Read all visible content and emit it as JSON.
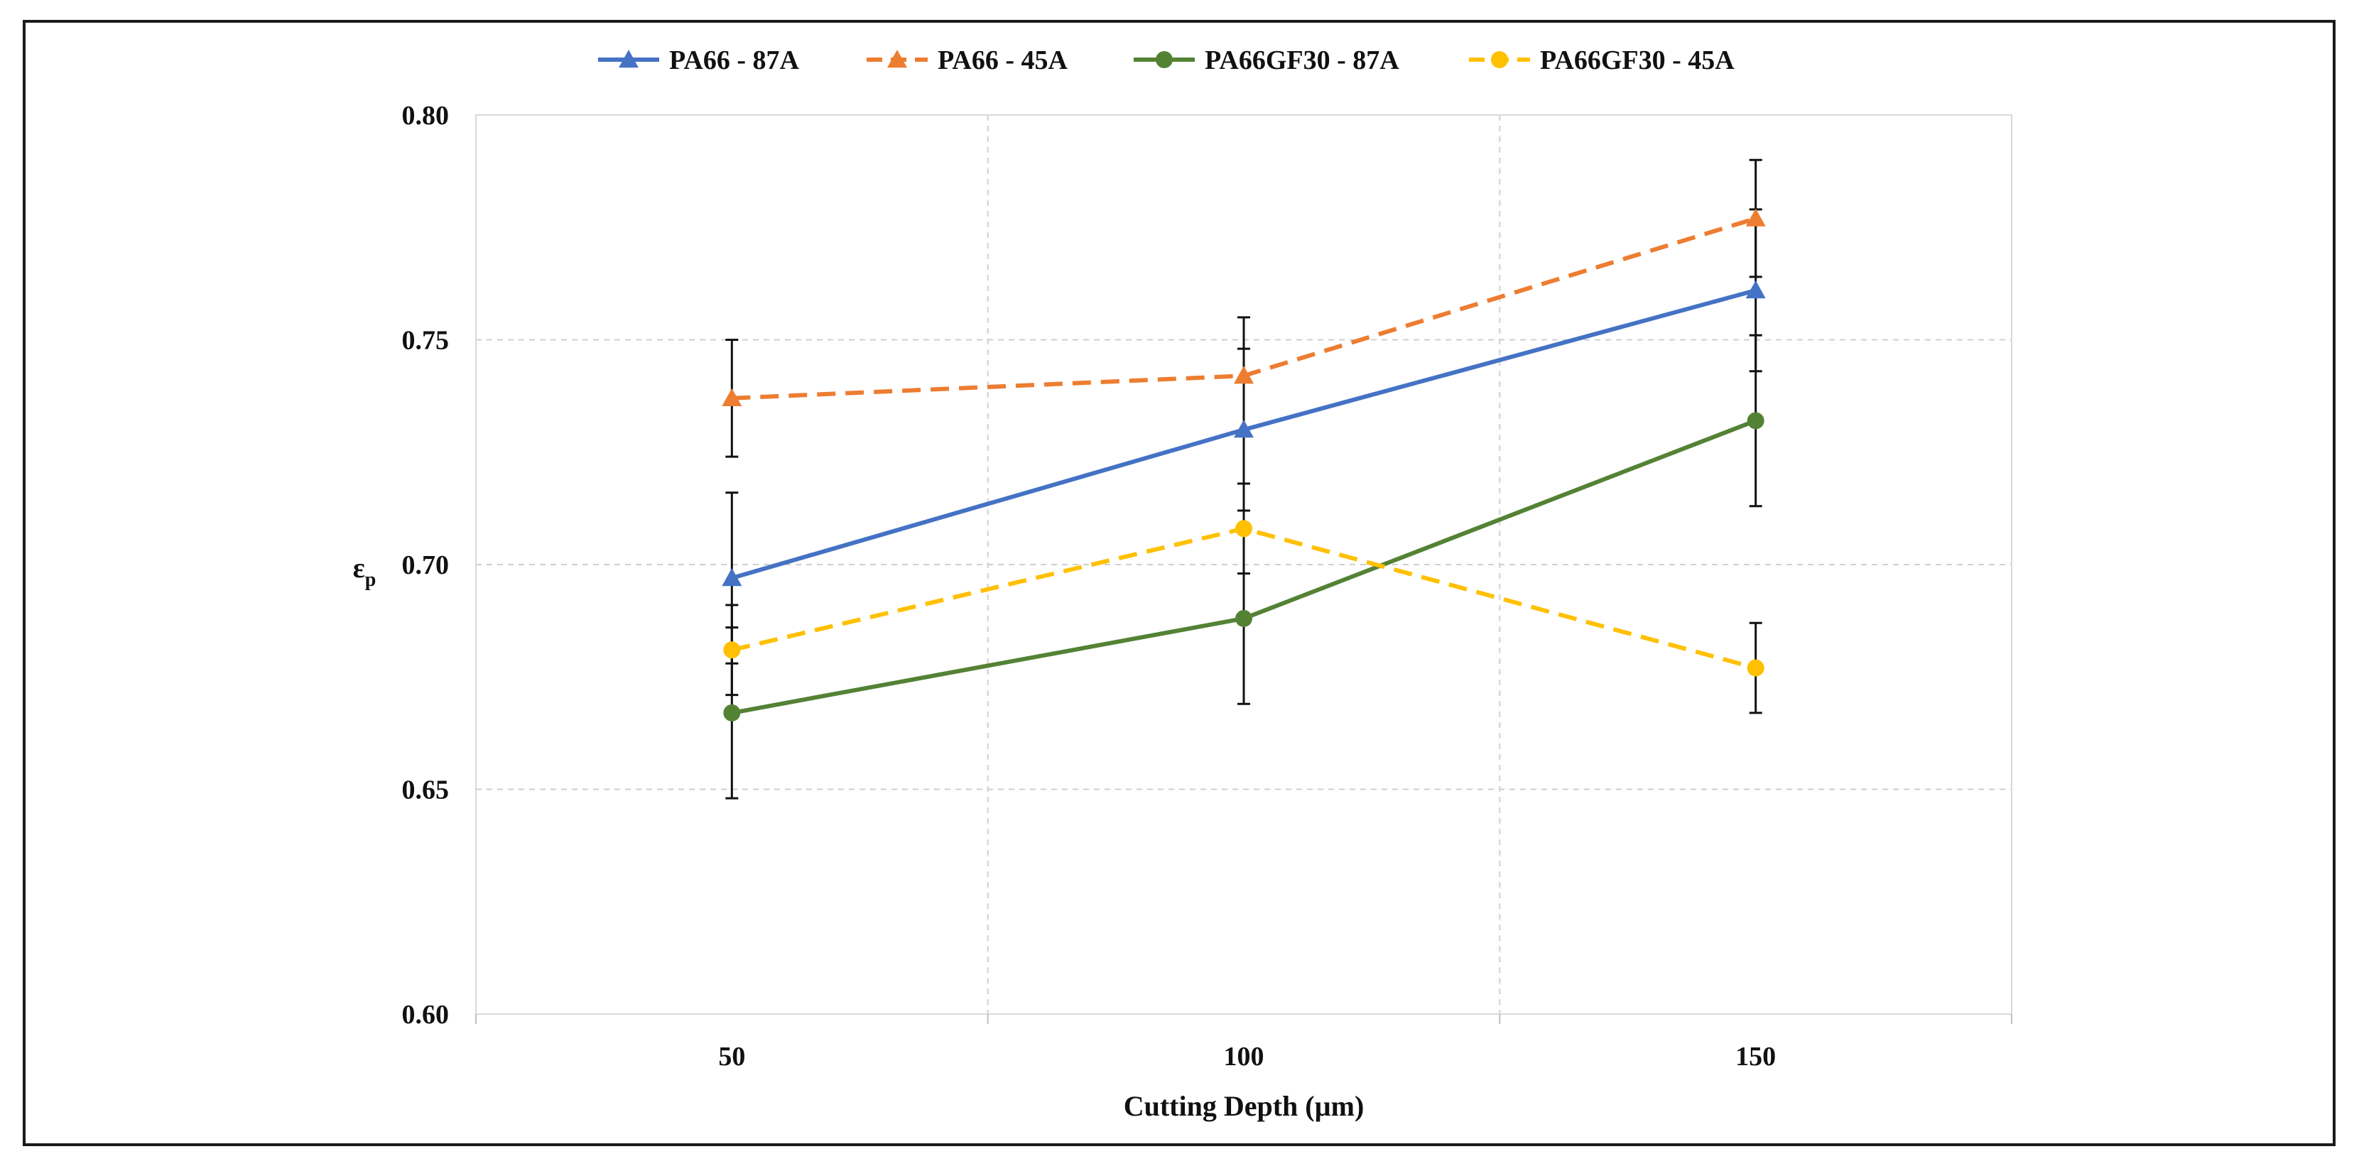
{
  "chart_data": {
    "type": "line",
    "title": "",
    "xlabel": "Cutting Depth (µm)",
    "ylabel": "ε",
    "ylabel_sub": "p",
    "x": [
      50,
      100,
      150
    ],
    "x_ticks": [
      "50",
      "100",
      "150"
    ],
    "xlim": [
      25,
      175
    ],
    "ylim": [
      0.6,
      0.8
    ],
    "y_ticks": [
      "0.60",
      "0.65",
      "0.70",
      "0.75",
      "0.80"
    ],
    "grid": true,
    "legend_position": "top-center",
    "series": [
      {
        "name": "PA66 - 87A",
        "color": "#4472C4",
        "marker": "triangle",
        "dash": false,
        "values": [
          0.697,
          0.73,
          0.761
        ],
        "errors": [
          0.019,
          0.018,
          0.018
        ]
      },
      {
        "name": "PA66 - 45A",
        "color": "#ED7D31",
        "marker": "triangle",
        "dash": true,
        "values": [
          0.737,
          0.742,
          0.777
        ],
        "errors": [
          0.013,
          0.013,
          0.013
        ]
      },
      {
        "name": "PA66GF30 - 87A",
        "color": "#548235",
        "marker": "circle",
        "dash": false,
        "values": [
          0.667,
          0.688,
          0.732
        ],
        "errors": [
          0.019,
          0.019,
          0.019
        ]
      },
      {
        "name": "PA66GF30 - 45A",
        "color": "#FFC000",
        "marker": "circle",
        "dash": true,
        "values": [
          0.681,
          0.708,
          0.677
        ],
        "errors": [
          0.01,
          0.01,
          0.01
        ]
      }
    ]
  }
}
